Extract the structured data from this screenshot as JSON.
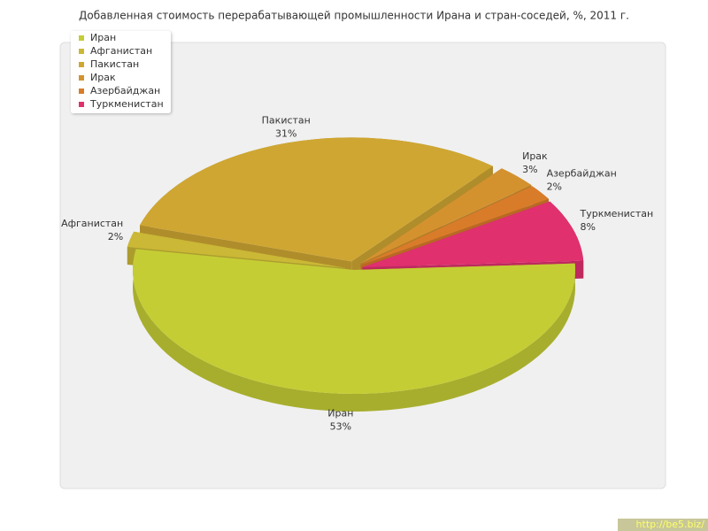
{
  "chart_data": {
    "type": "pie3d",
    "title": "Добавленная стоимость перерабатывающей промышленности Ирана и стран-соседей, %, 2011 г.",
    "categories": [
      "Иран",
      "Афганистан",
      "Пакистан",
      "Ирак",
      "Азербайджан",
      "Туркменистан"
    ],
    "values": [
      53,
      2,
      31,
      3,
      2,
      8
    ],
    "value_labels": [
      "53%",
      "2%",
      "31%",
      "3%",
      "2%",
      "8%"
    ],
    "colors": [
      "#c5cd35",
      "#cab836",
      "#cfa632",
      "#d4922f",
      "#d97c2a",
      "#e0306e"
    ],
    "legend": "top-left"
  },
  "watermark": "http://be5.biz/"
}
